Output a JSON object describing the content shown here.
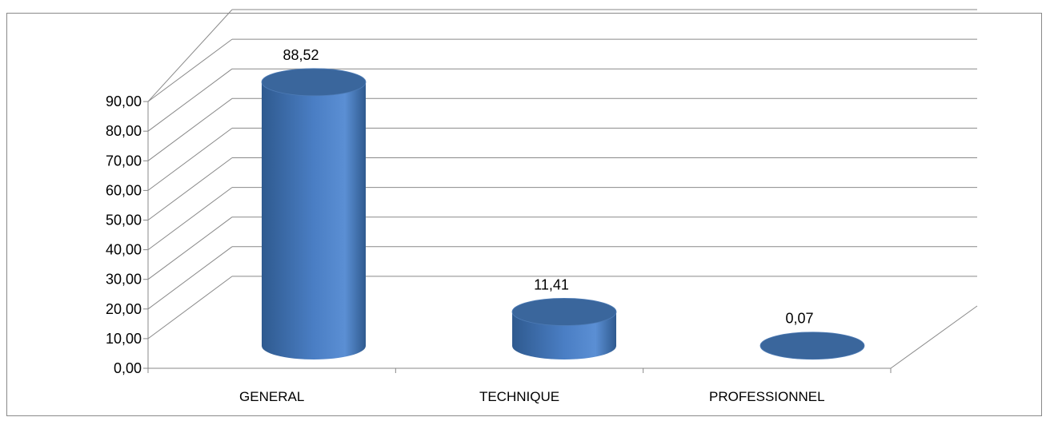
{
  "chart_data": {
    "type": "bar",
    "bar_shape": "cylinder",
    "three_d": true,
    "categories": [
      "GENERAL",
      "TECHNIQUE",
      "PROFESSIONNEL"
    ],
    "values": [
      88.52,
      11.41,
      0.07
    ],
    "data_labels": [
      "88,52",
      "11,41",
      "0,07"
    ],
    "y_ticks": [
      "0,00",
      "10,00",
      "20,00",
      "30,00",
      "40,00",
      "50,00",
      "60,00",
      "70,00",
      "80,00",
      "90,00"
    ],
    "ylim": [
      0,
      90
    ],
    "y_step": 10,
    "grid": true,
    "legend": "none",
    "title": "",
    "xlabel": "",
    "ylabel": "",
    "colors": {
      "bar_dark": "#2f5a8f",
      "bar_mid": "#4a7ec4",
      "bar_light": "#5b8fd4",
      "bar_top": "#3a669c",
      "grid": "#898989",
      "axis": "#898989"
    }
  }
}
